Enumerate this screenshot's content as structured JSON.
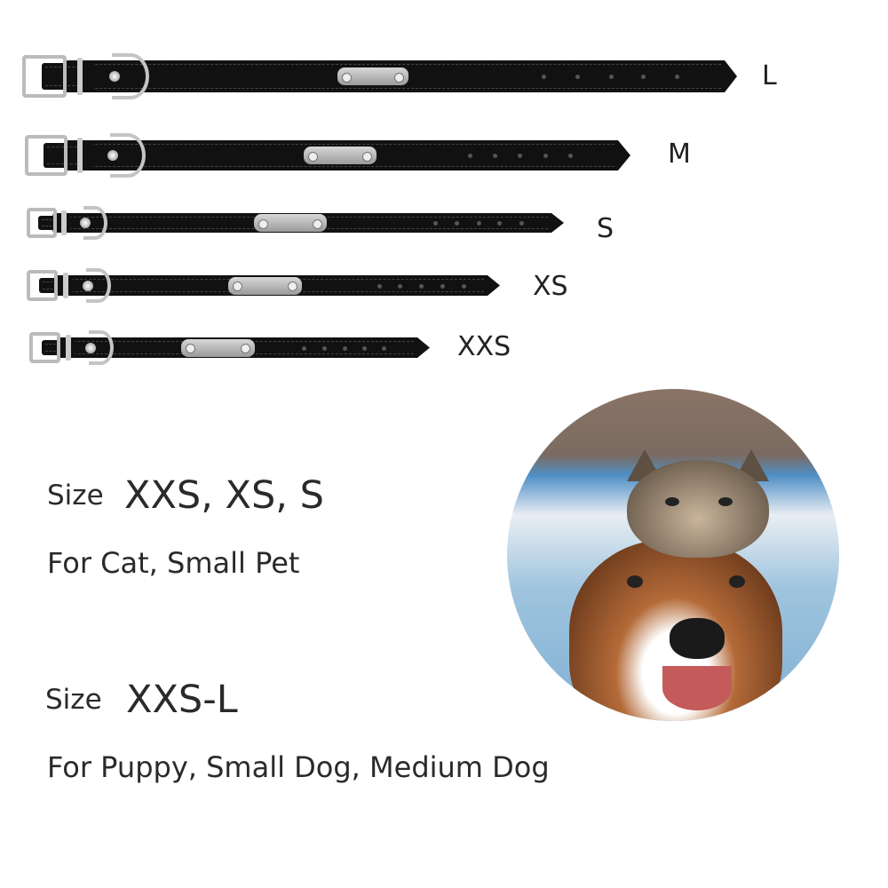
{
  "collars": [
    {
      "size": "L"
    },
    {
      "size": "M"
    },
    {
      "size": "S"
    },
    {
      "size": "XS"
    },
    {
      "size": "XXS"
    }
  ],
  "groups": [
    {
      "size_word": "Size",
      "sizes": "XXS, XS, S",
      "for": "For Cat, Small Pet"
    },
    {
      "size_word": "Size",
      "sizes": "XXS-L",
      "for": "For Puppy, Small Dog, Medium Dog"
    }
  ],
  "colors": {
    "strap": "#111111",
    "text": "#222222",
    "metal": "#bbbbbb"
  }
}
